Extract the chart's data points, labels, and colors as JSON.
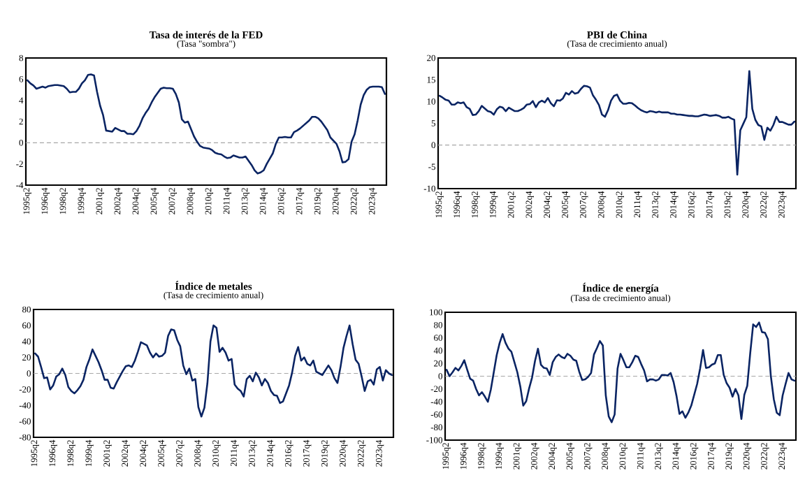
{
  "chart_data": [
    {
      "type": "line",
      "title": "Tasa de interés de la FED",
      "subtitle": "(Tasa \"sombra\")",
      "categories": [
        "1995q2",
        null,
        null,
        null,
        null,
        null,
        "1996q4",
        null,
        null,
        null,
        null,
        null,
        "1998q2",
        null,
        null,
        null,
        null,
        null,
        "1999q4",
        null,
        null,
        null,
        null,
        null,
        "2001q2",
        null,
        null,
        null,
        null,
        null,
        "2002q4",
        null,
        null,
        null,
        null,
        null,
        "2004q2",
        null,
        null,
        null,
        null,
        null,
        "2005q4",
        null,
        null,
        null,
        null,
        null,
        "2007q2",
        null,
        null,
        null,
        null,
        null,
        "2008q4",
        null,
        null,
        null,
        null,
        null,
        "2010q2",
        null,
        null,
        null,
        null,
        null,
        "2011q4",
        null,
        null,
        null,
        null,
        null,
        "2013q2",
        null,
        null,
        null,
        null,
        null,
        "2014q4",
        null,
        null,
        null,
        null,
        null,
        "2016q2",
        null,
        null,
        null,
        null,
        null,
        "2017q4",
        null,
        null,
        null,
        null,
        null,
        "2019q2",
        null,
        null,
        null,
        null,
        null,
        "2020q4",
        null,
        null,
        null,
        null,
        null,
        "2022q2",
        null,
        null,
        null,
        null,
        null,
        "2023q4",
        null,
        null,
        null,
        null
      ],
      "values": [
        5.9,
        5.6,
        5.4,
        5.1,
        5.2,
        5.3,
        5.2,
        5.35,
        5.4,
        5.45,
        5.45,
        5.4,
        5.35,
        5.1,
        4.75,
        4.8,
        4.8,
        5.1,
        5.6,
        5.9,
        6.4,
        6.45,
        6.35,
        4.8,
        3.5,
        2.6,
        1.15,
        1.1,
        1.05,
        1.4,
        1.25,
        1.1,
        1.1,
        0.85,
        0.85,
        0.8,
        1.1,
        1.6,
        2.3,
        2.8,
        3.2,
        3.8,
        4.3,
        4.7,
        5.1,
        5.2,
        5.15,
        5.15,
        5.1,
        4.6,
        3.8,
        2.2,
        1.9,
        2.0,
        1.3,
        0.6,
        0.1,
        -0.3,
        -0.45,
        -0.5,
        -0.55,
        -0.7,
        -0.95,
        -1.05,
        -1.1,
        -1.3,
        -1.45,
        -1.4,
        -1.2,
        -1.3,
        -1.4,
        -1.4,
        -1.3,
        -1.7,
        -2.1,
        -2.6,
        -2.9,
        -2.8,
        -2.6,
        -2.0,
        -1.5,
        -1.0,
        -0.1,
        0.5,
        0.5,
        0.55,
        0.5,
        0.5,
        1.0,
        1.15,
        1.35,
        1.6,
        1.85,
        2.1,
        2.45,
        2.45,
        2.3,
        2.0,
        1.6,
        1.2,
        0.5,
        0.2,
        -0.1,
        -0.8,
        -1.85,
        -1.8,
        -1.55,
        0.1,
        0.8,
        2.1,
        3.6,
        4.5,
        5.0,
        5.25,
        5.3,
        5.3,
        5.3,
        5.25,
        4.6
      ],
      "color": "#0a2463",
      "ylim": [
        -4,
        8
      ],
      "yticks": [
        -4,
        -2,
        0,
        2,
        4,
        6,
        8
      ],
      "ref_lines": [
        {
          "axis": "y",
          "value": 0,
          "color": "#a6a6a6",
          "line_style": "dashed"
        }
      ]
    },
    {
      "type": "line",
      "title": "PBI de China",
      "subtitle": "(Tasa de crecimiento anual)",
      "categories": [
        "1995q2",
        null,
        null,
        null,
        null,
        null,
        "1996q4",
        null,
        null,
        null,
        null,
        null,
        "1998q2",
        null,
        null,
        null,
        null,
        null,
        "1999q4",
        null,
        null,
        null,
        null,
        null,
        "2001q2",
        null,
        null,
        null,
        null,
        null,
        "2002q4",
        null,
        null,
        null,
        null,
        null,
        "2004q2",
        null,
        null,
        null,
        null,
        null,
        "2005q4",
        null,
        null,
        null,
        null,
        null,
        "2007q2",
        null,
        null,
        null,
        null,
        null,
        "2008q4",
        null,
        null,
        null,
        null,
        null,
        "2010q2",
        null,
        null,
        null,
        null,
        null,
        "2011q4",
        null,
        null,
        null,
        null,
        null,
        "2013q2",
        null,
        null,
        null,
        null,
        null,
        "2014q4",
        null,
        null,
        null,
        null,
        null,
        "2016q2",
        null,
        null,
        null,
        null,
        null,
        "2017q4",
        null,
        null,
        null,
        null,
        null,
        "2019q2",
        null,
        null,
        null,
        null,
        null,
        "2020q4",
        null,
        null,
        null,
        null,
        null,
        "2022q2",
        null,
        null,
        null,
        null,
        null,
        "2023q4",
        null,
        null,
        null,
        null
      ],
      "values": [
        11.3,
        10.9,
        10.4,
        10.2,
        9.3,
        9.3,
        9.8,
        9.6,
        9.8,
        8.7,
        8.3,
        6.9,
        7.0,
        7.8,
        9.0,
        8.4,
        7.8,
        7.6,
        7.0,
        8.2,
        8.8,
        8.6,
        7.8,
        8.6,
        8.2,
        7.8,
        7.8,
        8.1,
        8.5,
        9.3,
        9.4,
        10.1,
        8.7,
        9.8,
        10.2,
        9.8,
        10.8,
        9.6,
        8.9,
        10.3,
        10.2,
        10.7,
        12.0,
        11.6,
        12.4,
        11.8,
        12.0,
        12.9,
        13.6,
        13.5,
        13.2,
        11.4,
        10.4,
        9.2,
        7.0,
        6.5,
        8.0,
        10.2,
        11.3,
        11.6,
        10.2,
        9.5,
        9.5,
        9.7,
        9.6,
        9.1,
        8.5,
        8.0,
        7.7,
        7.5,
        7.8,
        7.7,
        7.5,
        7.7,
        7.5,
        7.5,
        7.5,
        7.2,
        7.2,
        7.0,
        7.0,
        6.9,
        6.8,
        6.7,
        6.7,
        6.6,
        6.6,
        6.8,
        7.0,
        6.9,
        6.7,
        6.8,
        6.9,
        6.7,
        6.3,
        6.3,
        6.5,
        6.1,
        5.8,
        -6.8,
        3.4,
        4.9,
        6.4,
        17.0,
        8.3,
        5.8,
        4.6,
        4.3,
        1.2,
        4.0,
        3.3,
        4.6,
        6.5,
        5.3,
        5.3,
        5.0,
        4.7,
        4.7,
        5.4
      ],
      "color": "#0a2463",
      "ylim": [
        -10,
        20
      ],
      "yticks": [
        -10,
        -5,
        0,
        5,
        10,
        15,
        20
      ],
      "ref_lines": [
        {
          "axis": "y",
          "value": 0,
          "color": "#a6a6a6",
          "line_style": "dashed"
        }
      ]
    },
    {
      "type": "line",
      "title": "Índice de metales",
      "subtitle": "(Tasa de crecimiento anual)",
      "categories": [
        "1995q2",
        null,
        null,
        null,
        null,
        null,
        "1996q4",
        null,
        null,
        null,
        null,
        null,
        "1998q2",
        null,
        null,
        null,
        null,
        null,
        "1999q4",
        null,
        null,
        null,
        null,
        null,
        "2001q2",
        null,
        null,
        null,
        null,
        null,
        "2002q4",
        null,
        null,
        null,
        null,
        null,
        "2004q2",
        null,
        null,
        null,
        null,
        null,
        "2005q4",
        null,
        null,
        null,
        null,
        null,
        "2007q2",
        null,
        null,
        null,
        null,
        null,
        "2008q4",
        null,
        null,
        null,
        null,
        null,
        "2010q2",
        null,
        null,
        null,
        null,
        null,
        "2011q4",
        null,
        null,
        null,
        null,
        null,
        "2013q2",
        null,
        null,
        null,
        null,
        null,
        "2014q4",
        null,
        null,
        null,
        null,
        null,
        "2016q2",
        null,
        null,
        null,
        null,
        null,
        "2017q4",
        null,
        null,
        null,
        null,
        null,
        "2019q2",
        null,
        null,
        null,
        null,
        null,
        "2020q4",
        null,
        null,
        null,
        null,
        null,
        "2022q2",
        null,
        null,
        null,
        null,
        null,
        "2023q4",
        null,
        null,
        null,
        null
      ],
      "values": [
        25,
        21,
        8,
        -6,
        -5,
        -20,
        -15,
        -4,
        -1,
        6,
        -2,
        -17,
        -22,
        -25,
        -21,
        -16,
        -8,
        8,
        18,
        30,
        22,
        14,
        4,
        -8,
        -8,
        -18,
        -19,
        -11,
        -4,
        3,
        9,
        10,
        8,
        16,
        27,
        39,
        37,
        35,
        26,
        20,
        25,
        21,
        22,
        26,
        47,
        55,
        54,
        42,
        34,
        10,
        -1,
        6,
        -9,
        -7,
        -42,
        -54,
        -43,
        -12,
        40,
        60,
        57,
        27,
        32,
        26,
        16,
        18,
        -14,
        -19,
        -22,
        -29,
        -7,
        -3,
        -10,
        1,
        -5,
        -15,
        -7,
        -12,
        -22,
        -27,
        -28,
        -37,
        -35,
        -25,
        -15,
        1,
        22,
        33,
        16,
        20,
        12,
        10,
        16,
        2,
        0,
        -2,
        4,
        10,
        4,
        -6,
        -12,
        8,
        32,
        47,
        60,
        37,
        17,
        12,
        -4,
        -22,
        -10,
        -8,
        -14,
        5,
        8,
        -9,
        4,
        0,
        -2
      ],
      "color": "#0a2463",
      "ylim": [
        -80,
        80
      ],
      "yticks": [
        -80,
        -60,
        -40,
        -20,
        0,
        20,
        40,
        60,
        80
      ],
      "ref_lines": [
        {
          "axis": "y",
          "value": 0,
          "color": "#a6a6a6",
          "line_style": "dashed"
        }
      ]
    },
    {
      "type": "line",
      "title": "Índice de energía",
      "subtitle": "(Tasa de crecimiento anual)",
      "categories": [
        "1995q2",
        null,
        null,
        null,
        null,
        null,
        "1996q4",
        null,
        null,
        null,
        null,
        null,
        "1998q2",
        null,
        null,
        null,
        null,
        null,
        "1999q4",
        null,
        null,
        null,
        null,
        null,
        "2001q2",
        null,
        null,
        null,
        null,
        null,
        "2002q4",
        null,
        null,
        null,
        null,
        null,
        "2004q2",
        null,
        null,
        null,
        null,
        null,
        "2005q4",
        null,
        null,
        null,
        null,
        null,
        "2007q2",
        null,
        null,
        null,
        null,
        null,
        "2008q4",
        null,
        null,
        null,
        null,
        null,
        "2010q2",
        null,
        null,
        null,
        null,
        null,
        "2011q4",
        null,
        null,
        null,
        null,
        null,
        "2013q2",
        null,
        null,
        null,
        null,
        null,
        "2014q4",
        null,
        null,
        null,
        null,
        null,
        "2016q2",
        null,
        null,
        null,
        null,
        null,
        "2017q4",
        null,
        null,
        null,
        null,
        null,
        "2019q2",
        null,
        null,
        null,
        null,
        null,
        "2020q4",
        null,
        null,
        null,
        null,
        null,
        "2022q2",
        null,
        null,
        null,
        null,
        null,
        "2023q4",
        null,
        null,
        null,
        null
      ],
      "values": [
        10,
        0,
        6,
        13,
        9,
        16,
        25,
        10,
        -4,
        -7,
        -20,
        -30,
        -25,
        -32,
        -40,
        -21,
        6,
        33,
        52,
        66,
        52,
        43,
        38,
        22,
        6,
        -16,
        -46,
        -39,
        -19,
        -2,
        24,
        43,
        18,
        13,
        12,
        2,
        22,
        30,
        34,
        30,
        28,
        35,
        32,
        26,
        24,
        7,
        -6,
        -5,
        -1,
        5,
        34,
        44,
        55,
        48,
        -30,
        -63,
        -72,
        -60,
        12,
        35,
        25,
        14,
        14,
        22,
        32,
        30,
        19,
        9,
        -8,
        -5,
        -5,
        -7,
        -5,
        2,
        2,
        1,
        5,
        -9,
        -31,
        -59,
        -55,
        -65,
        -57,
        -46,
        -29,
        -12,
        12,
        41,
        13,
        14,
        18,
        20,
        33,
        33,
        2,
        -11,
        -18,
        -32,
        -20,
        -30,
        -67,
        -29,
        -15,
        36,
        81,
        77,
        84,
        69,
        68,
        58,
        0,
        -36,
        -57,
        -61,
        -30,
        -12,
        5,
        -5,
        -7
      ],
      "color": "#0a2463",
      "ylim": [
        -100,
        100
      ],
      "yticks": [
        -100,
        -80,
        -60,
        -40,
        -20,
        0,
        20,
        40,
        60,
        80,
        100
      ],
      "ref_lines": [
        {
          "axis": "y",
          "value": 0,
          "color": "#a6a6a6",
          "line_style": "dashed"
        }
      ]
    }
  ]
}
